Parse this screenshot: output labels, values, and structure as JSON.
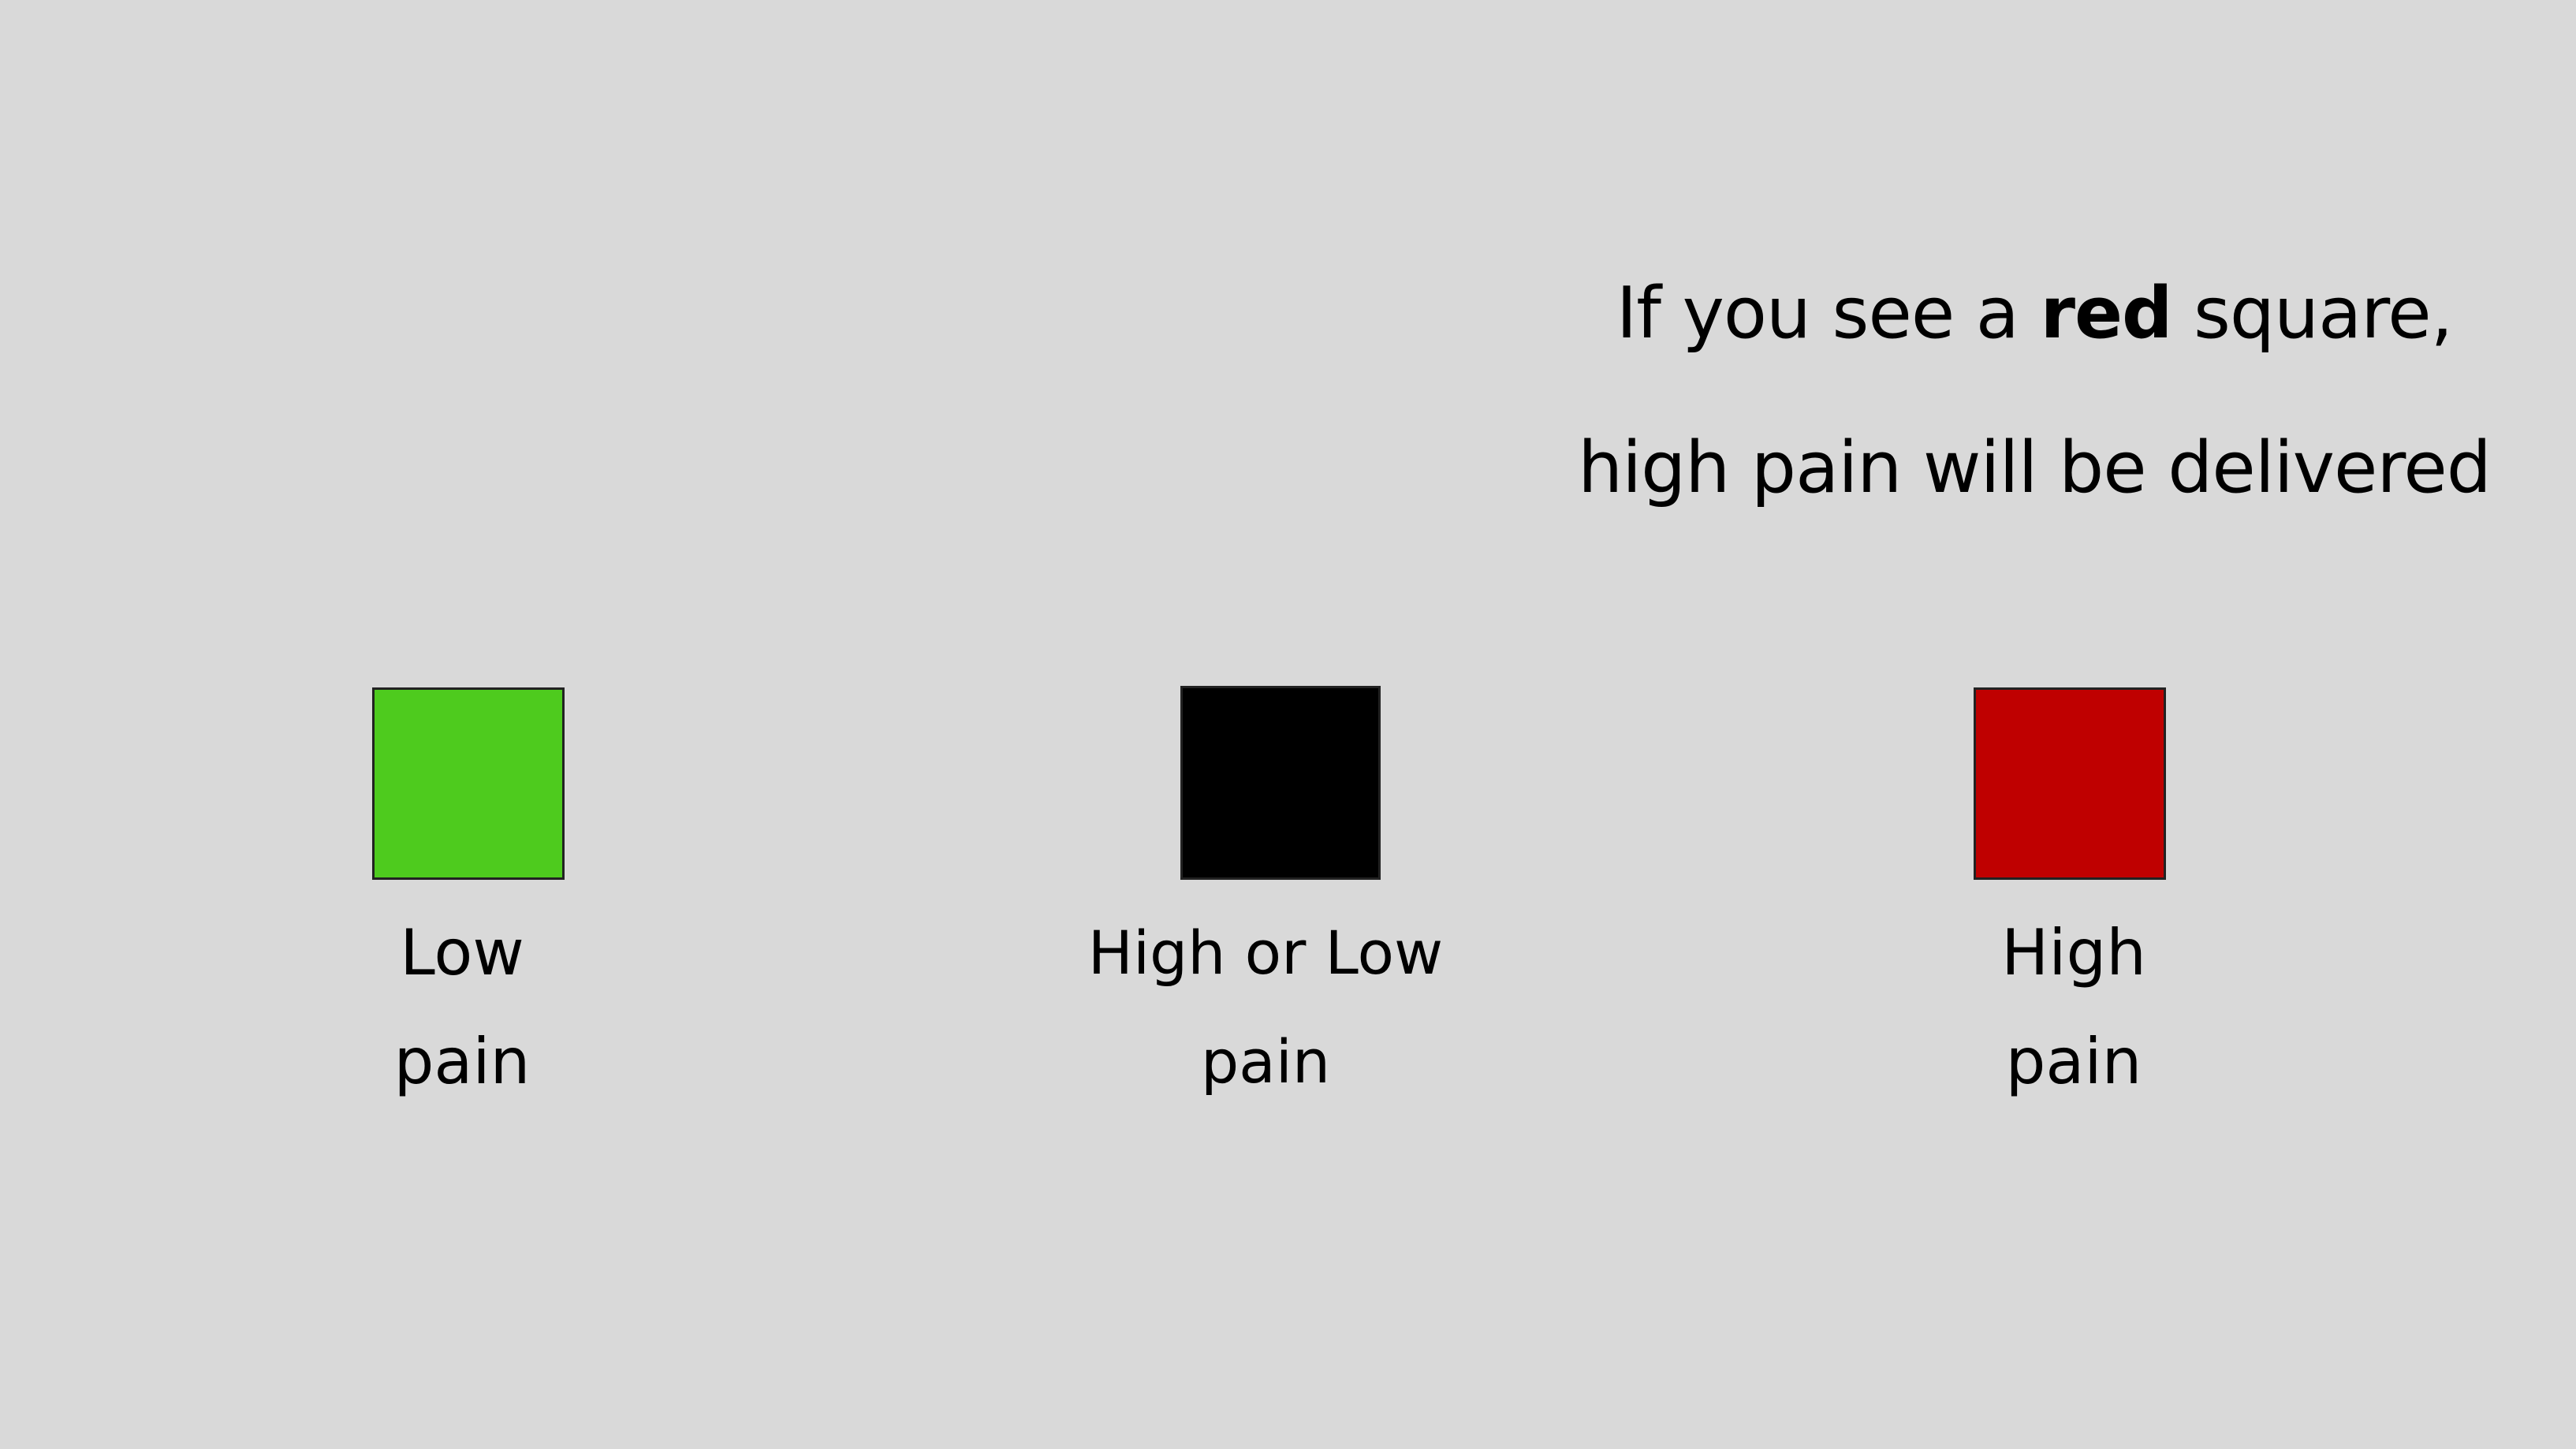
{
  "instruction": {
    "line1_prefix": "If you see a ",
    "line1_emphasis": "red",
    "line1_suffix": " square,",
    "line2": "high pain will be delivered"
  },
  "cues": [
    {
      "color": "#4ecb1e",
      "label_line1": "Low",
      "label_line2": "pain"
    },
    {
      "color": "#000000",
      "label_line1": "High or Low",
      "label_line2": "pain"
    },
    {
      "color": "#bf0000",
      "label_line1": "High",
      "label_line2": "pain"
    }
  ],
  "colors": {
    "background": "#d9d9d9",
    "text": "#000000"
  }
}
